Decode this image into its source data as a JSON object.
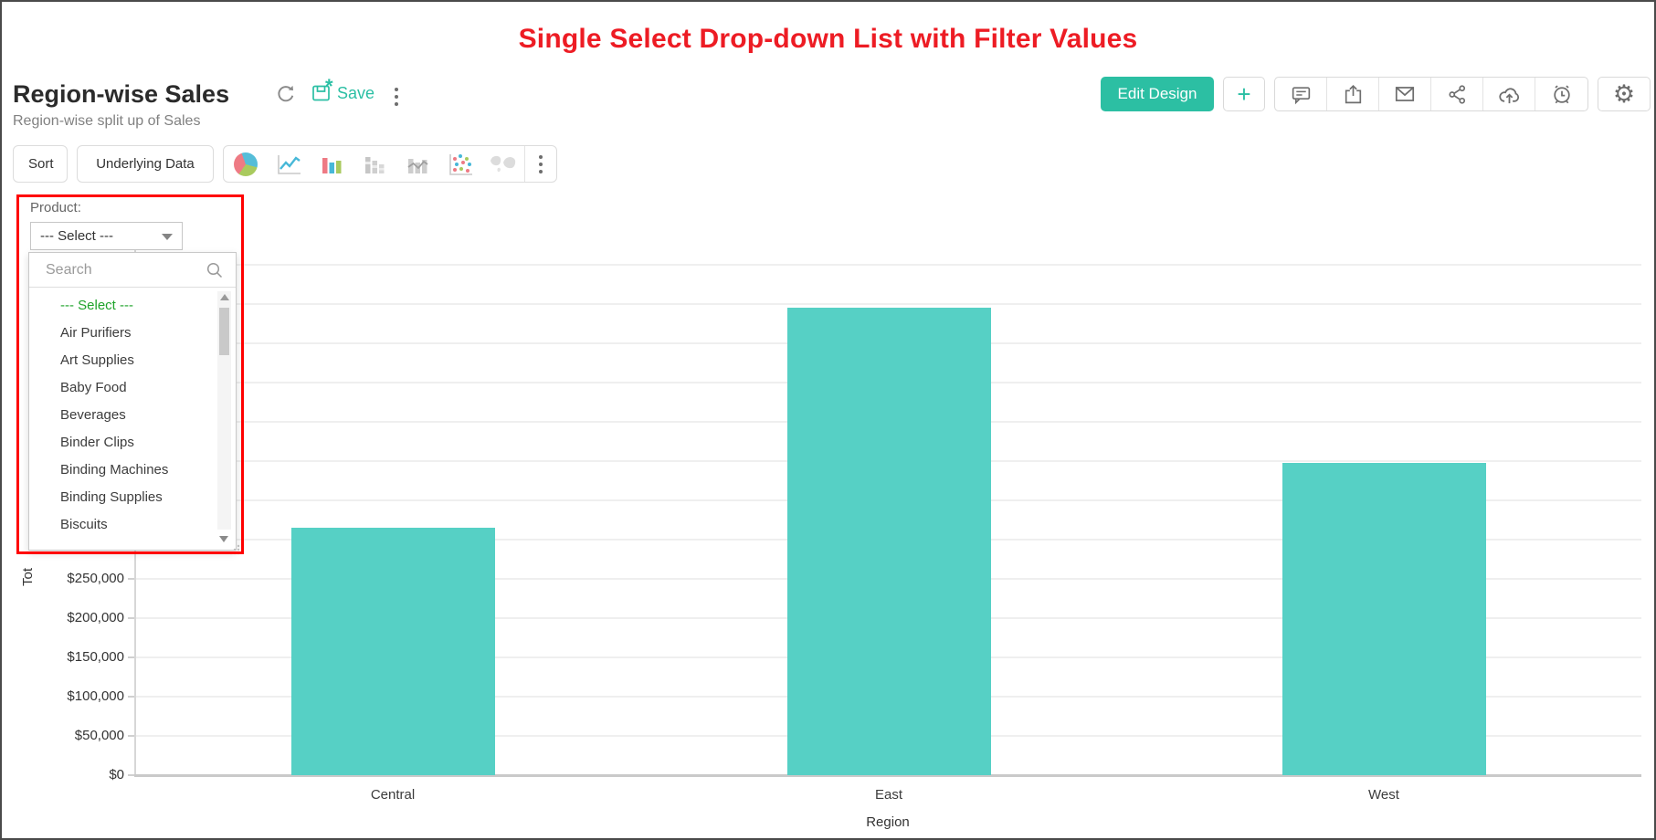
{
  "annotation": {
    "heading": "Single Select Drop-down List with Filter Values",
    "heading_color": "#ed1c24",
    "box_color": "#ff0000"
  },
  "header": {
    "title": "Region-wise Sales",
    "subtitle": "Region-wise split up of Sales",
    "save_label": "Save",
    "edit_design_label": "Edit Design",
    "plus_label": "+",
    "icon_names": [
      "refresh-icon",
      "save-icon",
      "more-icon",
      "plus-icon",
      "comment-icon",
      "export-icon",
      "email-icon",
      "share-icon",
      "cloud-upload-icon",
      "alarm-icon",
      "settings-gear-icon"
    ]
  },
  "toolbar": {
    "sort_label": "Sort",
    "underlying_data_label": "Underlying Data",
    "chart_type_icons": [
      "pie-chart-icon",
      "line-chart-icon",
      "bar-chart-icon",
      "stacked-bar-icon",
      "bar-line-combo-icon",
      "scatter-chart-icon",
      "map-chart-icon",
      "more-icon"
    ]
  },
  "filter": {
    "label": "Product:",
    "selected_value": "--- Select ---",
    "search_placeholder": "Search",
    "options": [
      "--- Select ---",
      "Air Purifiers",
      "Art Supplies",
      "Baby Food",
      "Beverages",
      "Binder Clips",
      "Binding Machines",
      "Binding Supplies",
      "Biscuits"
    ],
    "selected_option_index": 0,
    "selected_option_color": "#1fa32b"
  },
  "chart_data": {
    "type": "bar",
    "categories": [
      "Central",
      "East",
      "West"
    ],
    "values": [
      315000,
      595000,
      398000
    ],
    "title": "",
    "xlabel": "Region",
    "ylabel_visible": "Tot",
    "y_ticks_visible": [
      "$0",
      "$50,000",
      "$100,000",
      "$150,000",
      "$200,000",
      "$250,000"
    ],
    "tick_step": 50000,
    "ylim": [
      0,
      700000
    ],
    "grid": true,
    "legend": false,
    "bar_color": "#56d0c5"
  },
  "colors": {
    "accent_teal": "#2bbfa4",
    "bar_teal": "#56d0c5",
    "annotation_red": "#ff0000",
    "heading_red": "#ed1c24",
    "selected_green": "#1fa32b"
  }
}
